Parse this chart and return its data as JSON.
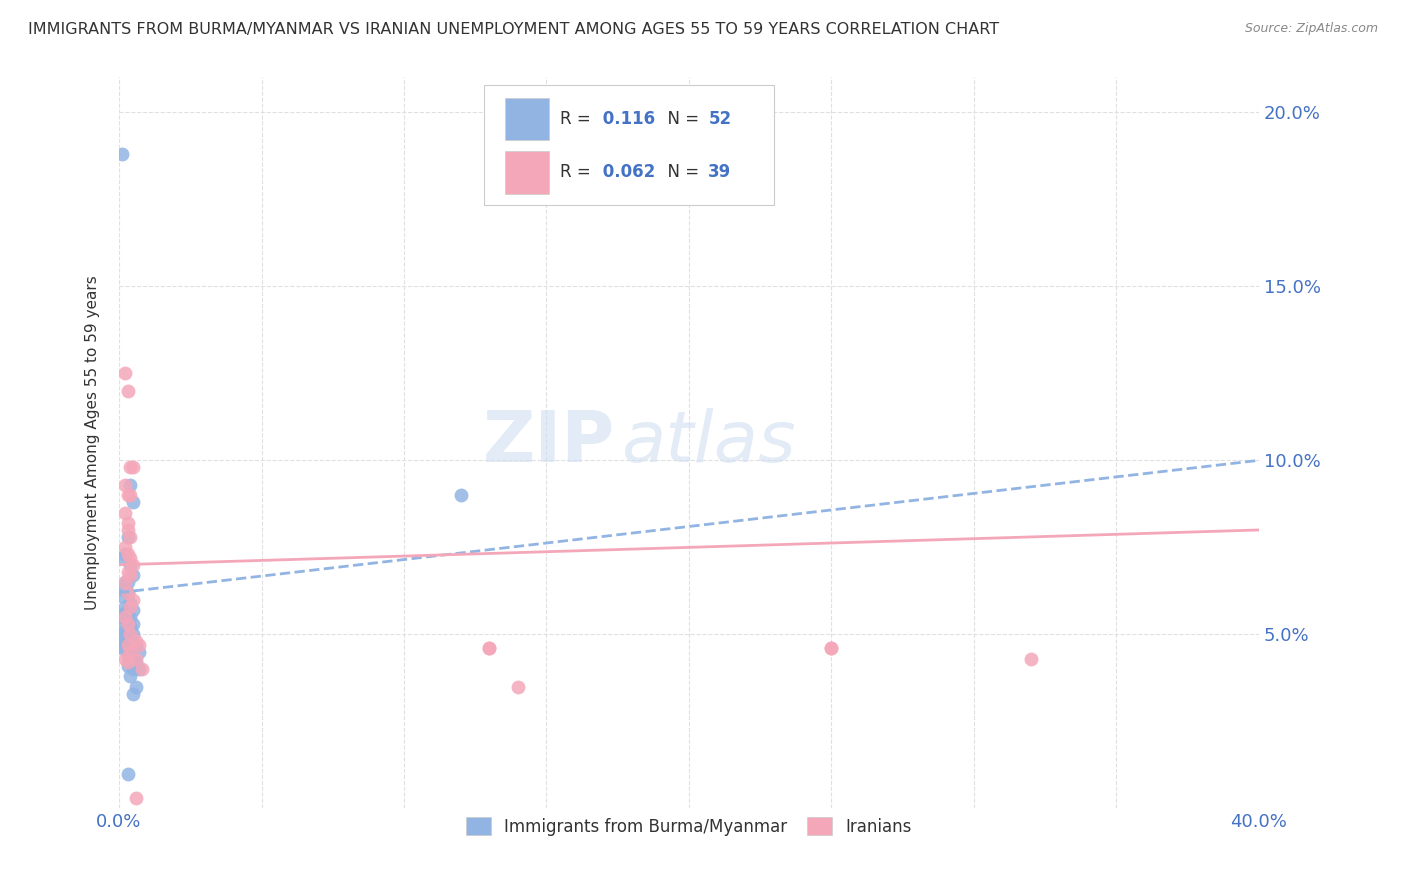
{
  "title": "IMMIGRANTS FROM BURMA/MYANMAR VS IRANIAN UNEMPLOYMENT AMONG AGES 55 TO 59 YEARS CORRELATION CHART",
  "source": "Source: ZipAtlas.com",
  "ylabel": "Unemployment Among Ages 55 to 59 years",
  "xlim": [
    0.0,
    0.4
  ],
  "ylim": [
    0.0,
    0.21
  ],
  "yticks": [
    0.05,
    0.1,
    0.15,
    0.2
  ],
  "ytick_labels": [
    "5.0%",
    "10.0%",
    "15.0%",
    "20.0%"
  ],
  "xticks": [
    0.0,
    0.05,
    0.1,
    0.15,
    0.2,
    0.25,
    0.3,
    0.35,
    0.4
  ],
  "xtick_labels": [
    "0.0%",
    "",
    "",
    "",
    "",
    "",
    "",
    "",
    "40.0%"
  ],
  "blue_R": "0.116",
  "blue_N": "52",
  "pink_R": "0.062",
  "pink_N": "39",
  "blue_color": "#92b4e3",
  "pink_color": "#f4a7b9",
  "blue_scatter": [
    [
      0.001,
      0.188
    ],
    [
      0.004,
      0.093
    ],
    [
      0.005,
      0.088
    ],
    [
      0.003,
      0.078
    ],
    [
      0.002,
      0.073
    ],
    [
      0.001,
      0.072
    ],
    [
      0.004,
      0.07
    ],
    [
      0.005,
      0.067
    ],
    [
      0.003,
      0.065
    ],
    [
      0.002,
      0.065
    ],
    [
      0.001,
      0.063
    ],
    [
      0.003,
      0.062
    ],
    [
      0.001,
      0.061
    ],
    [
      0.004,
      0.059
    ],
    [
      0.002,
      0.058
    ],
    [
      0.005,
      0.057
    ],
    [
      0.003,
      0.057
    ],
    [
      0.001,
      0.056
    ],
    [
      0.002,
      0.055
    ],
    [
      0.004,
      0.055
    ],
    [
      0.001,
      0.055
    ],
    [
      0.005,
      0.053
    ],
    [
      0.003,
      0.053
    ],
    [
      0.004,
      0.052
    ],
    [
      0.001,
      0.052
    ],
    [
      0.002,
      0.051
    ],
    [
      0.003,
      0.05
    ],
    [
      0.004,
      0.05
    ],
    [
      0.005,
      0.05
    ],
    [
      0.001,
      0.049
    ],
    [
      0.003,
      0.049
    ],
    [
      0.004,
      0.048
    ],
    [
      0.001,
      0.048
    ],
    [
      0.003,
      0.047
    ],
    [
      0.005,
      0.047
    ],
    [
      0.006,
      0.047
    ],
    [
      0.001,
      0.046
    ],
    [
      0.002,
      0.046
    ],
    [
      0.004,
      0.045
    ],
    [
      0.007,
      0.045
    ],
    [
      0.003,
      0.044
    ],
    [
      0.005,
      0.043
    ],
    [
      0.004,
      0.042
    ],
    [
      0.006,
      0.042
    ],
    [
      0.003,
      0.041
    ],
    [
      0.005,
      0.04
    ],
    [
      0.007,
      0.04
    ],
    [
      0.004,
      0.038
    ],
    [
      0.006,
      0.035
    ],
    [
      0.005,
      0.033
    ],
    [
      0.003,
      0.01
    ],
    [
      0.12,
      0.09
    ]
  ],
  "pink_scatter": [
    [
      0.002,
      0.125
    ],
    [
      0.003,
      0.12
    ],
    [
      0.004,
      0.098
    ],
    [
      0.005,
      0.098
    ],
    [
      0.002,
      0.093
    ],
    [
      0.003,
      0.09
    ],
    [
      0.004,
      0.09
    ],
    [
      0.002,
      0.085
    ],
    [
      0.003,
      0.082
    ],
    [
      0.003,
      0.08
    ],
    [
      0.004,
      0.078
    ],
    [
      0.002,
      0.075
    ],
    [
      0.003,
      0.073
    ],
    [
      0.004,
      0.072
    ],
    [
      0.005,
      0.07
    ],
    [
      0.003,
      0.068
    ],
    [
      0.004,
      0.067
    ],
    [
      0.002,
      0.065
    ],
    [
      0.003,
      0.062
    ],
    [
      0.005,
      0.06
    ],
    [
      0.004,
      0.058
    ],
    [
      0.002,
      0.055
    ],
    [
      0.003,
      0.053
    ],
    [
      0.004,
      0.05
    ],
    [
      0.006,
      0.048
    ],
    [
      0.003,
      0.047
    ],
    [
      0.007,
      0.047
    ],
    [
      0.004,
      0.045
    ],
    [
      0.006,
      0.043
    ],
    [
      0.002,
      0.043
    ],
    [
      0.003,
      0.042
    ],
    [
      0.008,
      0.04
    ],
    [
      0.13,
      0.046
    ],
    [
      0.25,
      0.046
    ],
    [
      0.32,
      0.043
    ],
    [
      0.14,
      0.035
    ],
    [
      0.13,
      0.046
    ],
    [
      0.25,
      0.046
    ],
    [
      0.006,
      0.003
    ]
  ],
  "watermark": "ZIPatlas",
  "background_color": "#ffffff",
  "grid_color": "#e0e0e0",
  "title_color": "#333333",
  "axis_label_color": "#4472c4",
  "tick_color": "#333333"
}
